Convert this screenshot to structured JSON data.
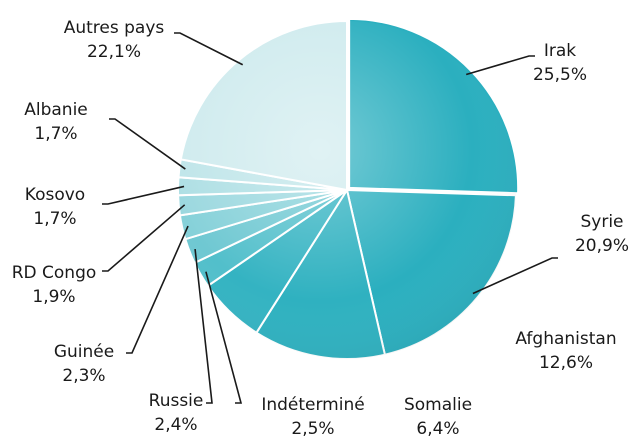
{
  "chart_data": {
    "type": "pie",
    "title": "",
    "slices": [
      {
        "label": "Irak",
        "value": 25.5,
        "value_label": "25,5%",
        "color": "#2BAFBF"
      },
      {
        "label": "Syrie",
        "value": 20.9,
        "value_label": "20,9%",
        "color": "#2BAFBF"
      },
      {
        "label": "Afghanistan",
        "value": 12.6,
        "value_label": "12,6%",
        "color": "#2FB1C0"
      },
      {
        "label": "Somalie",
        "value": 6.4,
        "value_label": "6,4%",
        "color": "#34B3C2"
      },
      {
        "label": "Indéterminé",
        "value": 2.5,
        "value_label": "2,5%",
        "color": "#52BFCB"
      },
      {
        "label": "Russie",
        "value": 2.4,
        "value_label": "2,4%",
        "color": "#6FC8D2"
      },
      {
        "label": "Guinée",
        "value": 2.3,
        "value_label": "2,3%",
        "color": "#86D1D9"
      },
      {
        "label": "RD Congo",
        "value": 1.9,
        "value_label": "1,9%",
        "color": "#9BD8DF"
      },
      {
        "label": "Kosovo",
        "value": 1.7,
        "value_label": "1,7%",
        "color": "#AEDFE4"
      },
      {
        "label": "Albanie",
        "value": 1.7,
        "value_label": "1,7%",
        "color": "#BFE5E9"
      },
      {
        "label": "Autres pays",
        "value": 22.1,
        "value_label": "22,1%",
        "color": "#CFEBEE"
      }
    ],
    "start_angle_deg": 0,
    "direction": "clockwise",
    "legend": "none",
    "labels": "outside-with-leader-lines"
  }
}
